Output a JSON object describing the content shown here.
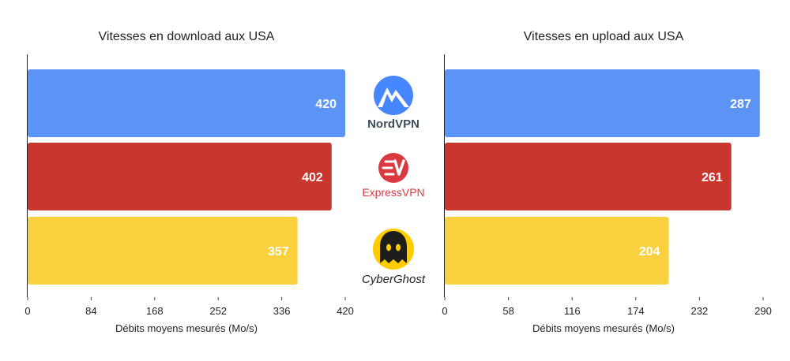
{
  "chart_data": [
    {
      "type": "bar",
      "orientation": "horizontal",
      "title": "Vitesses en download aux USA",
      "xlabel": "Débits moyens mesurés (Mo/s)",
      "categories": [
        "NordVPN",
        "ExpressVPN",
        "CyberGhost"
      ],
      "values": [
        420,
        402,
        357
      ],
      "xlim": [
        0,
        420
      ],
      "ticks": [
        0,
        84,
        168,
        252,
        336,
        420
      ],
      "grid": false,
      "colors": [
        "#5b94f5",
        "#c8362e",
        "#f9d13f"
      ]
    },
    {
      "type": "bar",
      "orientation": "horizontal",
      "title": "Vitesses en upload aux USA",
      "xlabel": "Débits moyens mesurés (Mo/s)",
      "categories": [
        "NordVPN",
        "ExpressVPN",
        "CyberGhost"
      ],
      "values": [
        287,
        261,
        204
      ],
      "xlim": [
        0,
        290
      ],
      "ticks": [
        0,
        58,
        116,
        174,
        232,
        290
      ],
      "grid": false,
      "colors": [
        "#5b94f5",
        "#c8362e",
        "#f9d13f"
      ]
    }
  ],
  "logos": [
    {
      "name": "NordVPN",
      "wordmark": "NordVPN",
      "icon": "mountain-icon",
      "color": "#4687ff",
      "text_color": "#3e4f5c"
    },
    {
      "name": "ExpressVPN",
      "wordmark": "ExpressVPN",
      "icon": "ev-badge-icon",
      "color": "#da3940"
    },
    {
      "name": "CyberGhost",
      "wordmark": "CyberGhost",
      "icon": "ghost-icon",
      "color": "#ffcc00",
      "text_color": "#222222"
    }
  ]
}
